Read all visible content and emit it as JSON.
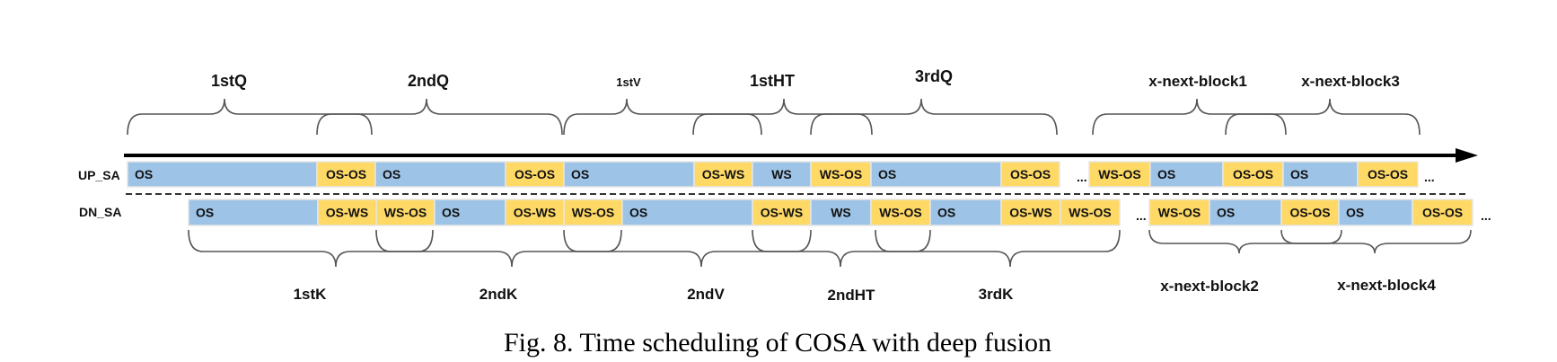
{
  "colors": {
    "os_block": "#9DC3E6",
    "overlap_block": "#FFD966",
    "brace": "#555555",
    "arrow": "#000000"
  },
  "rows": {
    "up": {
      "label": "UP_SA",
      "blocks": [
        {
          "text": "OS",
          "kind": "os"
        },
        {
          "text": "OS-OS",
          "kind": "overlap"
        },
        {
          "text": "OS",
          "kind": "os"
        },
        {
          "text": "OS-OS",
          "kind": "overlap"
        },
        {
          "text": "OS",
          "kind": "os"
        },
        {
          "text": "OS-WS",
          "kind": "overlap"
        },
        {
          "text": "WS",
          "kind": "os"
        },
        {
          "text": "WS-OS",
          "kind": "overlap"
        },
        {
          "text": "OS",
          "kind": "os"
        },
        {
          "text": "OS-OS",
          "kind": "overlap"
        },
        {
          "text": "...",
          "kind": "ellipsis"
        },
        {
          "text": "WS-OS",
          "kind": "overlap"
        },
        {
          "text": "OS",
          "kind": "os"
        },
        {
          "text": "OS-OS",
          "kind": "overlap"
        },
        {
          "text": "OS",
          "kind": "os"
        },
        {
          "text": "OS-OS",
          "kind": "overlap"
        },
        {
          "text": "...",
          "kind": "ellipsis"
        }
      ]
    },
    "dn": {
      "label": "DN_SA",
      "blocks": [
        {
          "text": "OS",
          "kind": "os"
        },
        {
          "text": "OS-WS",
          "kind": "overlap"
        },
        {
          "text": "WS-OS",
          "kind": "overlap"
        },
        {
          "text": "OS",
          "kind": "os"
        },
        {
          "text": "OS-WS",
          "kind": "overlap"
        },
        {
          "text": "WS-OS",
          "kind": "overlap"
        },
        {
          "text": "OS",
          "kind": "os"
        },
        {
          "text": "OS-WS",
          "kind": "overlap"
        },
        {
          "text": "WS",
          "kind": "os"
        },
        {
          "text": "WS-OS",
          "kind": "overlap"
        },
        {
          "text": "OS",
          "kind": "os"
        },
        {
          "text": "OS-WS",
          "kind": "overlap"
        },
        {
          "text": "WS-OS",
          "kind": "overlap"
        },
        {
          "text": "...",
          "kind": "ellipsis"
        },
        {
          "text": "WS-OS",
          "kind": "overlap"
        },
        {
          "text": "OS",
          "kind": "os"
        },
        {
          "text": "OS-OS",
          "kind": "overlap"
        },
        {
          "text": "OS",
          "kind": "os"
        },
        {
          "text": "OS-OS",
          "kind": "overlap"
        },
        {
          "text": "...",
          "kind": "ellipsis"
        }
      ]
    }
  },
  "top_braces": [
    {
      "label": "1stQ"
    },
    {
      "label": "2ndQ"
    },
    {
      "label": "1stV"
    },
    {
      "label": "1stHT"
    },
    {
      "label": "3rdQ"
    },
    {
      "label": "x-next-block1"
    },
    {
      "label": "x-next-block3"
    }
  ],
  "bottom_braces": [
    {
      "label": "1stK"
    },
    {
      "label": "2ndK"
    },
    {
      "label": "2ndV"
    },
    {
      "label": "2ndHT"
    },
    {
      "label": "3rdK"
    },
    {
      "label": "x-next-block2"
    },
    {
      "label": "x-next-block4"
    }
  ],
  "caption": "Fig. 8.  Time scheduling of COSA with deep fusion"
}
